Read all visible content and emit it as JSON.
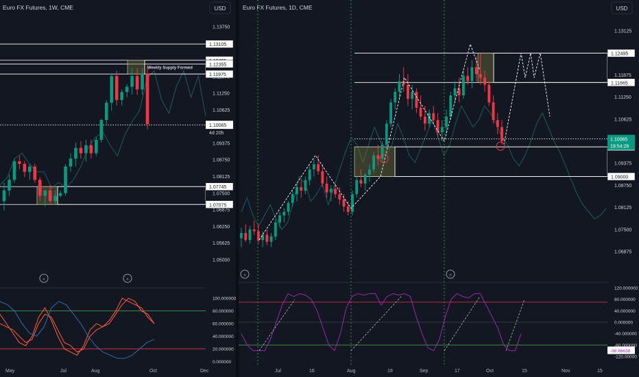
{
  "left_panel": {
    "title": "Euro FX Futures, 1W, CME",
    "currency": "USD",
    "yaxis_ticks": [
      "1.13750",
      "1.13125",
      "1.12500",
      "1.11875",
      "1.11250",
      "1.10625",
      "1.10000",
      "1.09375",
      "1.08750",
      "1.08125",
      "1.07500",
      "1.06875",
      "1.06250",
      "1.05625",
      "1.05000"
    ],
    "tick_values": [
      1.1375,
      1.13125,
      1.125,
      1.11875,
      1.1125,
      1.10625,
      1.1,
      1.09375,
      1.0875,
      1.08125,
      1.075,
      1.06875,
      1.0625,
      1.05625,
      1.05
    ],
    "price_labels": [
      {
        "value": 1.13105,
        "text": "1.13105"
      },
      {
        "value": 1.12495,
        "text": "1.12495"
      },
      {
        "value": 1.12355,
        "text": "1.12355"
      },
      {
        "value": 1.11975,
        "text": "1.11975"
      },
      {
        "value": 1.07745,
        "text": "1.07745"
      },
      {
        "value": 1.07075,
        "text": "1.07075"
      }
    ],
    "current_price": {
      "value": 1.10065,
      "text": "1.10065",
      "countdown": "4d 20h"
    },
    "annotation": "Weekly Supply Formed",
    "xaxis": [
      "May",
      "Jul",
      "Aug",
      "Oct",
      "Dec"
    ],
    "osc_ticks": [
      "100.000000",
      "80.000000",
      "60.000000",
      "40.000000",
      "20.000000",
      "0.000000"
    ],
    "osc_values": [
      100,
      80,
      60,
      40,
      20,
      0
    ]
  },
  "right_panel": {
    "title": "Euro FX Futures, 1D, CME",
    "currency": "USD",
    "yaxis_ticks": [
      "1.13125",
      "1.12500",
      "1.11875",
      "1.11250",
      "1.10625",
      "1.10000",
      "1.09375",
      "1.08750",
      "1.08125",
      "1.07500",
      "1.06875"
    ],
    "tick_values": [
      1.13125,
      1.125,
      1.11875,
      1.1125,
      1.10625,
      1.1,
      1.09375,
      1.0875,
      1.08125,
      1.075,
      1.06875
    ],
    "price_labels": [
      {
        "value": 1.12495,
        "text": "1.12495"
      },
      {
        "value": 1.11665,
        "text": "1.11665"
      },
      {
        "value": 1.0984,
        "text": "1.09840"
      },
      {
        "value": 1.09,
        "text": "1.09000"
      }
    ],
    "current_price": {
      "value": 1.10065,
      "text": "1.10065",
      "countdown": "19:54:28"
    },
    "xaxis": [
      "Jul",
      "16",
      "Aug",
      "19",
      "Sep",
      "17",
      "Oct",
      "15",
      "Nov",
      "15"
    ],
    "osc_ticks": [
      "120.000000",
      "80.000000",
      "40.000000",
      "0.000000",
      "-40.000000",
      "-80.000000",
      "-120.00000"
    ],
    "osc_values": [
      120,
      80,
      40,
      0,
      -40,
      -80,
      -120
    ],
    "osc_current": "-98.66638"
  },
  "colors": {
    "bg": "#131722",
    "up": "#089981",
    "down": "#f23645",
    "text": "#d1d4dc",
    "grid": "#2a2e39",
    "osc_purple": "#9c27b0",
    "osc_red": "#f23645",
    "osc_green": "#4caf50",
    "shadow_line": "#1e5b5b",
    "rsi_orange": "#ff5d3b",
    "rsi_blue": "#2f6fae"
  },
  "chart_data": [
    {
      "type": "candlestick",
      "title": "Euro FX Futures, 1W, CME",
      "ylim": [
        1.04531,
        1.14063
      ],
      "x_labels": [
        "May",
        "Jul",
        "Aug",
        "Oct",
        "Dec"
      ],
      "ohlc": [
        [
          1.072,
          1.079,
          1.0685,
          1.076
        ],
        [
          1.076,
          1.082,
          1.074,
          1.08
        ],
        [
          1.08,
          1.088,
          1.079,
          1.087
        ],
        [
          1.087,
          1.089,
          1.084,
          1.086
        ],
        [
          1.086,
          1.087,
          1.081,
          1.083
        ],
        [
          1.083,
          1.086,
          1.08,
          1.085
        ],
        [
          1.085,
          1.086,
          1.079,
          1.08
        ],
        [
          1.08,
          1.081,
          1.072,
          1.074
        ],
        [
          1.074,
          1.076,
          1.07,
          1.076
        ],
        [
          1.076,
          1.078,
          1.071,
          1.072
        ],
        [
          1.072,
          1.076,
          1.071,
          1.074
        ],
        [
          1.074,
          1.076,
          1.0735,
          1.075
        ],
        [
          1.075,
          1.086,
          1.074,
          1.085
        ],
        [
          1.085,
          1.09,
          1.083,
          1.088
        ],
        [
          1.088,
          1.094,
          1.085,
          1.092
        ],
        [
          1.092,
          1.0945,
          1.088,
          1.09
        ],
        [
          1.09,
          1.095,
          1.087,
          1.093
        ],
        [
          1.093,
          1.095,
          1.088,
          1.09
        ],
        [
          1.09,
          1.096,
          1.089,
          1.095
        ],
        [
          1.095,
          1.103,
          1.094,
          1.1025
        ],
        [
          1.1025,
          1.11,
          1.101,
          1.109
        ],
        [
          1.109,
          1.12,
          1.106,
          1.119
        ],
        [
          1.119,
          1.121,
          1.108,
          1.11
        ],
        [
          1.11,
          1.114,
          1.108,
          1.113
        ],
        [
          1.113,
          1.116,
          1.111,
          1.115
        ],
        [
          1.115,
          1.122,
          1.112,
          1.119
        ],
        [
          1.119,
          1.122,
          1.112,
          1.114
        ],
        [
          1.114,
          1.122,
          1.112,
          1.12
        ],
        [
          1.12,
          1.123,
          1.099,
          1.101
        ]
      ],
      "price_lines": [
        1.13105,
        1.12495,
        1.12355,
        1.11975,
        1.07745,
        1.07075
      ],
      "boxes": [
        {
          "y_top": 1.12495,
          "y_bottom": 1.11975,
          "label": "Weekly Supply Formed"
        },
        {
          "y_top": 1.07745,
          "y_bottom": 1.07075
        }
      ],
      "shadow_series": [
        1.078,
        1.081,
        1.088,
        1.09,
        1.086,
        1.083,
        1.083,
        1.077,
        1.079,
        1.077,
        1.08,
        1.085,
        1.092,
        1.096,
        1.098,
        1.093,
        1.089,
        1.097,
        1.102,
        1.106,
        1.118,
        1.121,
        1.11,
        1.105,
        1.115,
        1.121,
        1.111,
        1.119,
        1.104
      ],
      "oscillator": {
        "ylim": [
          -5,
          110
        ],
        "levels": [
          80,
          20
        ],
        "series": [
          {
            "color": "orange",
            "values": [
              75,
              60,
              45,
              30,
              25,
              40,
              70,
              85,
              65,
              40,
              20,
              15,
              10,
              25,
              50,
              60,
              55,
              65,
              80,
              100,
              95,
              90,
              85,
              70,
              60
            ]
          },
          {
            "color": "orange",
            "values": [
              60,
              55,
              50,
              40,
              30,
              35,
              60,
              75,
              70,
              50,
              30,
              25,
              15,
              20,
              40,
              50,
              55,
              60,
              75,
              90,
              100,
              95,
              80,
              75,
              60
            ]
          },
          {
            "color": "blue",
            "values": [
              95,
              90,
              80,
              60,
              45,
              40,
              55,
              85,
              95,
              90,
              75,
              60,
              40,
              25,
              15,
              10,
              5,
              5,
              10,
              20,
              30,
              35
            ]
          }
        ]
      }
    },
    {
      "type": "candlestick",
      "title": "Euro FX Futures, 1D, CME",
      "ylim": [
        1.06563,
        1.13438
      ],
      "x_labels": [
        "Jul",
        "16",
        "Aug",
        "19",
        "Sep",
        "17",
        "Oct",
        "15",
        "Nov",
        "15"
      ],
      "ohlc": [
        [
          1.0725,
          1.0755,
          1.07,
          1.074
        ],
        [
          1.074,
          1.0765,
          1.0715,
          1.072
        ],
        [
          1.072,
          1.076,
          1.071,
          1.075
        ],
        [
          1.075,
          1.0775,
          1.0735,
          1.0745
        ],
        [
          1.0745,
          1.0765,
          1.071,
          1.072
        ],
        [
          1.072,
          1.0745,
          1.07,
          1.0735
        ],
        [
          1.0735,
          1.075,
          1.0705,
          1.0715
        ],
        [
          1.0715,
          1.074,
          1.07,
          1.073
        ],
        [
          1.073,
          1.078,
          1.072,
          1.077
        ],
        [
          1.077,
          1.08,
          1.0755,
          1.079
        ],
        [
          1.079,
          1.081,
          1.077,
          1.08
        ],
        [
          1.08,
          1.083,
          1.079,
          1.0825
        ],
        [
          1.0825,
          1.086,
          1.0815,
          1.085
        ],
        [
          1.085,
          1.088,
          1.083,
          1.087
        ],
        [
          1.087,
          1.089,
          1.084,
          1.086
        ],
        [
          1.086,
          1.09,
          1.085,
          1.089
        ],
        [
          1.089,
          1.093,
          1.0875,
          1.092
        ],
        [
          1.092,
          1.095,
          1.09,
          1.0935
        ],
        [
          1.0935,
          1.096,
          1.0905,
          1.0915
        ],
        [
          1.0915,
          1.0935,
          1.087,
          1.088
        ],
        [
          1.088,
          1.09,
          1.084,
          1.0855
        ],
        [
          1.0855,
          1.0875,
          1.083,
          1.0865
        ],
        [
          1.0865,
          1.088,
          1.084,
          1.085
        ],
        [
          1.085,
          1.087,
          1.082,
          1.0835
        ],
        [
          1.0835,
          1.085,
          1.08,
          1.0815
        ],
        [
          1.0815,
          1.083,
          1.079,
          1.08
        ],
        [
          1.08,
          1.086,
          1.079,
          1.085
        ],
        [
          1.085,
          1.09,
          1.084,
          1.089
        ],
        [
          1.089,
          1.092,
          1.087,
          1.088
        ],
        [
          1.088,
          1.091,
          1.086,
          1.0905
        ],
        [
          1.0905,
          1.0935,
          1.0885,
          1.092
        ],
        [
          1.092,
          1.097,
          1.091,
          1.096
        ],
        [
          1.096,
          1.099,
          1.093,
          1.095
        ],
        [
          1.095,
          1.1,
          1.094,
          1.099
        ],
        [
          1.099,
          1.106,
          1.098,
          1.105
        ],
        [
          1.105,
          1.112,
          1.104,
          1.111
        ],
        [
          1.111,
          1.115,
          1.109,
          1.114
        ],
        [
          1.114,
          1.119,
          1.112,
          1.117
        ],
        [
          1.117,
          1.121,
          1.114,
          1.116
        ],
        [
          1.116,
          1.119,
          1.11,
          1.112
        ],
        [
          1.112,
          1.116,
          1.109,
          1.114
        ],
        [
          1.114,
          1.115,
          1.108,
          1.1095
        ],
        [
          1.1095,
          1.113,
          1.106,
          1.107
        ],
        [
          1.107,
          1.11,
          1.103,
          1.105
        ],
        [
          1.105,
          1.109,
          1.104,
          1.108
        ],
        [
          1.108,
          1.11,
          1.105,
          1.106
        ],
        [
          1.106,
          1.108,
          1.101,
          1.1025
        ],
        [
          1.1025,
          1.106,
          1.1,
          1.104
        ],
        [
          1.104,
          1.109,
          1.102,
          1.107
        ],
        [
          1.107,
          1.114,
          1.106,
          1.113
        ],
        [
          1.113,
          1.117,
          1.111,
          1.115
        ],
        [
          1.115,
          1.118,
          1.111,
          1.113
        ],
        [
          1.113,
          1.12,
          1.112,
          1.1185
        ],
        [
          1.1185,
          1.121,
          1.116,
          1.117
        ],
        [
          1.117,
          1.123,
          1.115,
          1.121
        ],
        [
          1.121,
          1.124,
          1.117,
          1.119
        ],
        [
          1.119,
          1.125,
          1.116,
          1.118
        ],
        [
          1.118,
          1.12,
          1.114,
          1.116
        ],
        [
          1.116,
          1.117,
          1.11,
          1.111
        ],
        [
          1.111,
          1.113,
          1.105,
          1.106
        ],
        [
          1.106,
          1.108,
          1.102,
          1.104
        ],
        [
          1.104,
          1.106,
          1.099,
          1.1
        ]
      ],
      "price_lines": [
        1.12495,
        1.11665,
        1.0984,
        1.09
      ],
      "boxes": [
        {
          "y_top": 1.0984,
          "y_bottom": 1.09
        },
        {
          "y_top": 1.12495,
          "y_bottom": 1.11665
        }
      ],
      "shadow_series": [
        1.08,
        1.084,
        1.079,
        1.076,
        1.079,
        1.082,
        1.078,
        1.075,
        1.077,
        1.083,
        1.09,
        1.088,
        1.083,
        1.085,
        1.088,
        1.082,
        1.087,
        1.092,
        1.097,
        1.101,
        1.099,
        1.094,
        1.099,
        1.104,
        1.1,
        1.096,
        1.099,
        1.105,
        1.101,
        1.096,
        1.094,
        1.098,
        1.102,
        1.106,
        1.101,
        1.096,
        1.099,
        1.105,
        1.11,
        1.107,
        1.104,
        1.106,
        1.11,
        1.108,
        1.105,
        1.101,
        1.099,
        1.095,
        1.093,
        1.096,
        1.1,
        1.105,
        1.108,
        1.104,
        1.1,
        1.097,
        1.093,
        1.089,
        1.085,
        1.082,
        1.08,
        1.078,
        1.079,
        1.081
      ],
      "oscillator": {
        "ylim": [
          -125,
          125
        ],
        "levels": [
          70,
          -80
        ],
        "current": -98.66638,
        "series": [
          {
            "color": "purple",
            "values": [
              -40,
              -80,
              -100,
              -100,
              -100,
              -60,
              0,
              60,
              100,
              90,
              100,
              95,
              80,
              40,
              -20,
              -80,
              -100,
              -40,
              50,
              90,
              100,
              95,
              100,
              100,
              60,
              90,
              100,
              95,
              100,
              90,
              20,
              -40,
              -90,
              -100,
              -60,
              20,
              80,
              100,
              90,
              85,
              100,
              100,
              60,
              20,
              -20,
              -80,
              -100,
              -100,
              -40
            ]
          }
        ]
      }
    }
  ]
}
